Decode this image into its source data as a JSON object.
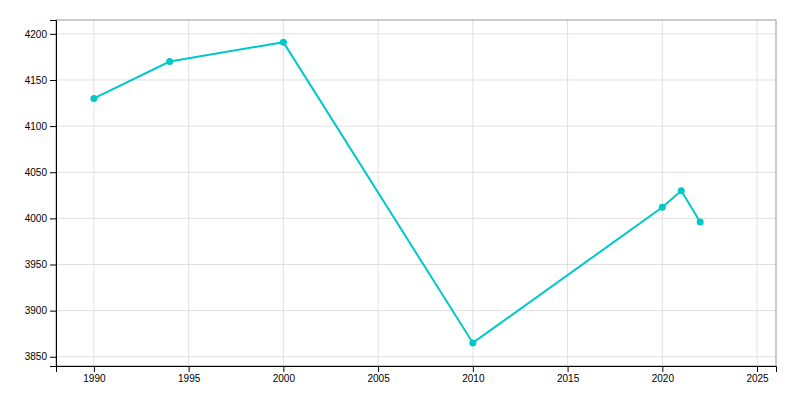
{
  "chart_data": {
    "type": "line",
    "x": [
      1990,
      1994,
      2000,
      2010,
      2020,
      2021,
      2022
    ],
    "values": [
      4130,
      4170,
      4191,
      3865,
      4012,
      4030,
      3996
    ],
    "color": "#00C8C8",
    "marker": "circle",
    "xlim": [
      1988,
      2026
    ],
    "ylim": [
      3840,
      4215
    ],
    "xticks": [
      1990,
      1995,
      2000,
      2005,
      2010,
      2015,
      2020,
      2025
    ],
    "yticks": [
      3850,
      3900,
      3950,
      4000,
      4050,
      4100,
      4150,
      4200
    ],
    "grid": true
  }
}
